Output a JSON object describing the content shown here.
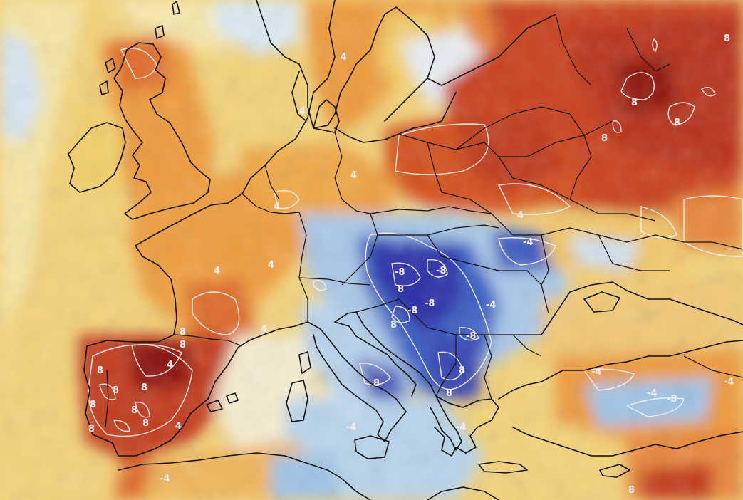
{
  "map": {
    "type": "temperature-anomaly",
    "palette": {
      "pale_yellow": "#f6e7a6",
      "yellow": "#f3cf6a",
      "orange": "#ee9a3a",
      "orange_red": "#e06a2a",
      "red": "#c83a1c",
      "dark_red": "#8a1010",
      "pale_blue": "#d8e8f4",
      "light_blue": "#9ec3e6",
      "blue": "#4f87cf",
      "dark_blue": "#2a2ea8",
      "purple": "#4a1f8a",
      "contour_line": "#f4f0ee",
      "coastline": "#111111"
    },
    "contour_labels": [
      "4",
      "4",
      "4",
      "4",
      "8",
      "8",
      "8",
      "8",
      "8",
      "8",
      "8",
      "8",
      "4",
      "8",
      "8",
      "4",
      "8",
      "8",
      "8",
      "8",
      "8",
      "8",
      "8",
      "8",
      "4",
      "4",
      "4",
      "-4",
      "-4",
      "-8",
      "-8",
      "-8",
      "-8",
      "-8",
      "-4",
      "-4",
      "-4",
      "-8",
      "-4",
      "-4",
      "-4",
      "8",
      "4"
    ]
  }
}
